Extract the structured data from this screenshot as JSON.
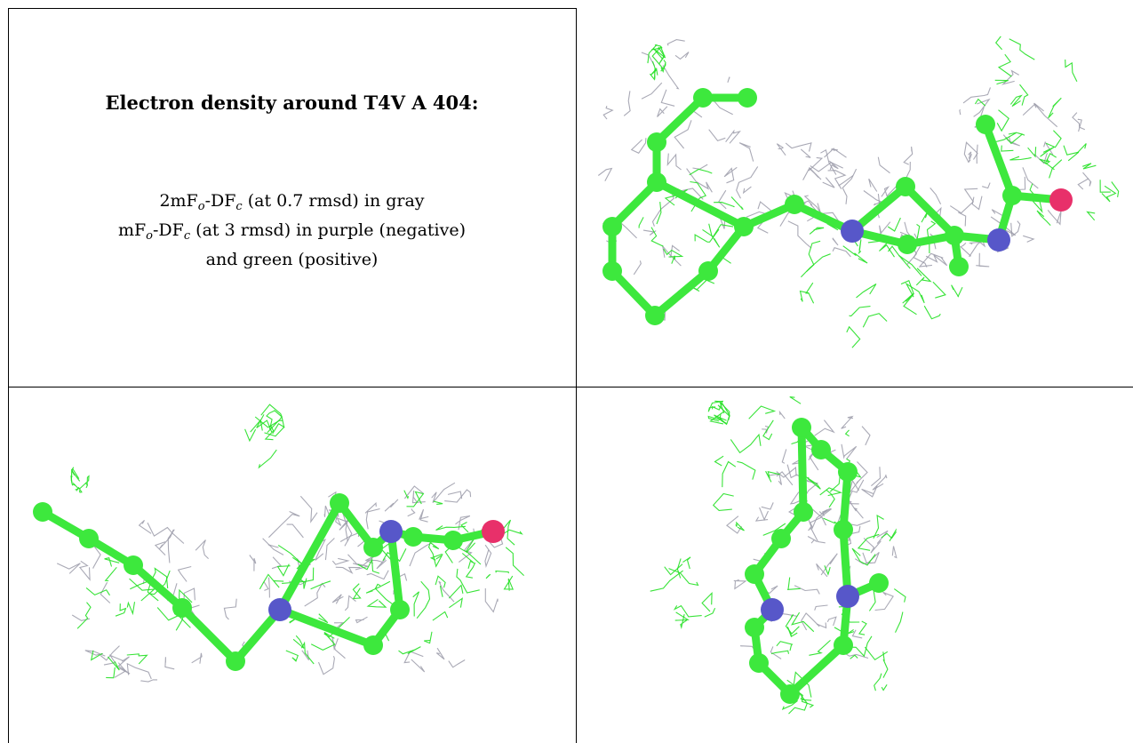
{
  "caption": {
    "title": "Electron density around T4V A 404:",
    "line1": {
      "pre": "2mF",
      "sub1": "o",
      "mid": "-DF",
      "sub2": "c",
      "post": " (at 0.7 rmsd) in gray"
    },
    "line2": {
      "pre": "mF",
      "sub1": "o",
      "mid": "-DF",
      "sub2": "c",
      "post": " (at 3 rmsd) in purple (negative)"
    },
    "line3": "and green (positive)"
  },
  "colors": {
    "carbon": "#3de83d",
    "nitrogen": "#5757c9",
    "oxygen": "#e8306a",
    "mesh_gray": "#9a9aa8",
    "mesh_green": "#22e022"
  },
  "panels": [
    {
      "name": "view-1",
      "mesh_gray": "2mFo-DFc",
      "mesh_green": "mFo-DFc positive"
    },
    {
      "name": "view-2",
      "mesh_gray": "2mFo-DFc",
      "mesh_green": "mFo-DFc positive"
    },
    {
      "name": "view-3",
      "mesh_gray": "2mFo-DFc",
      "mesh_green": "mFo-DFc positive"
    }
  ]
}
